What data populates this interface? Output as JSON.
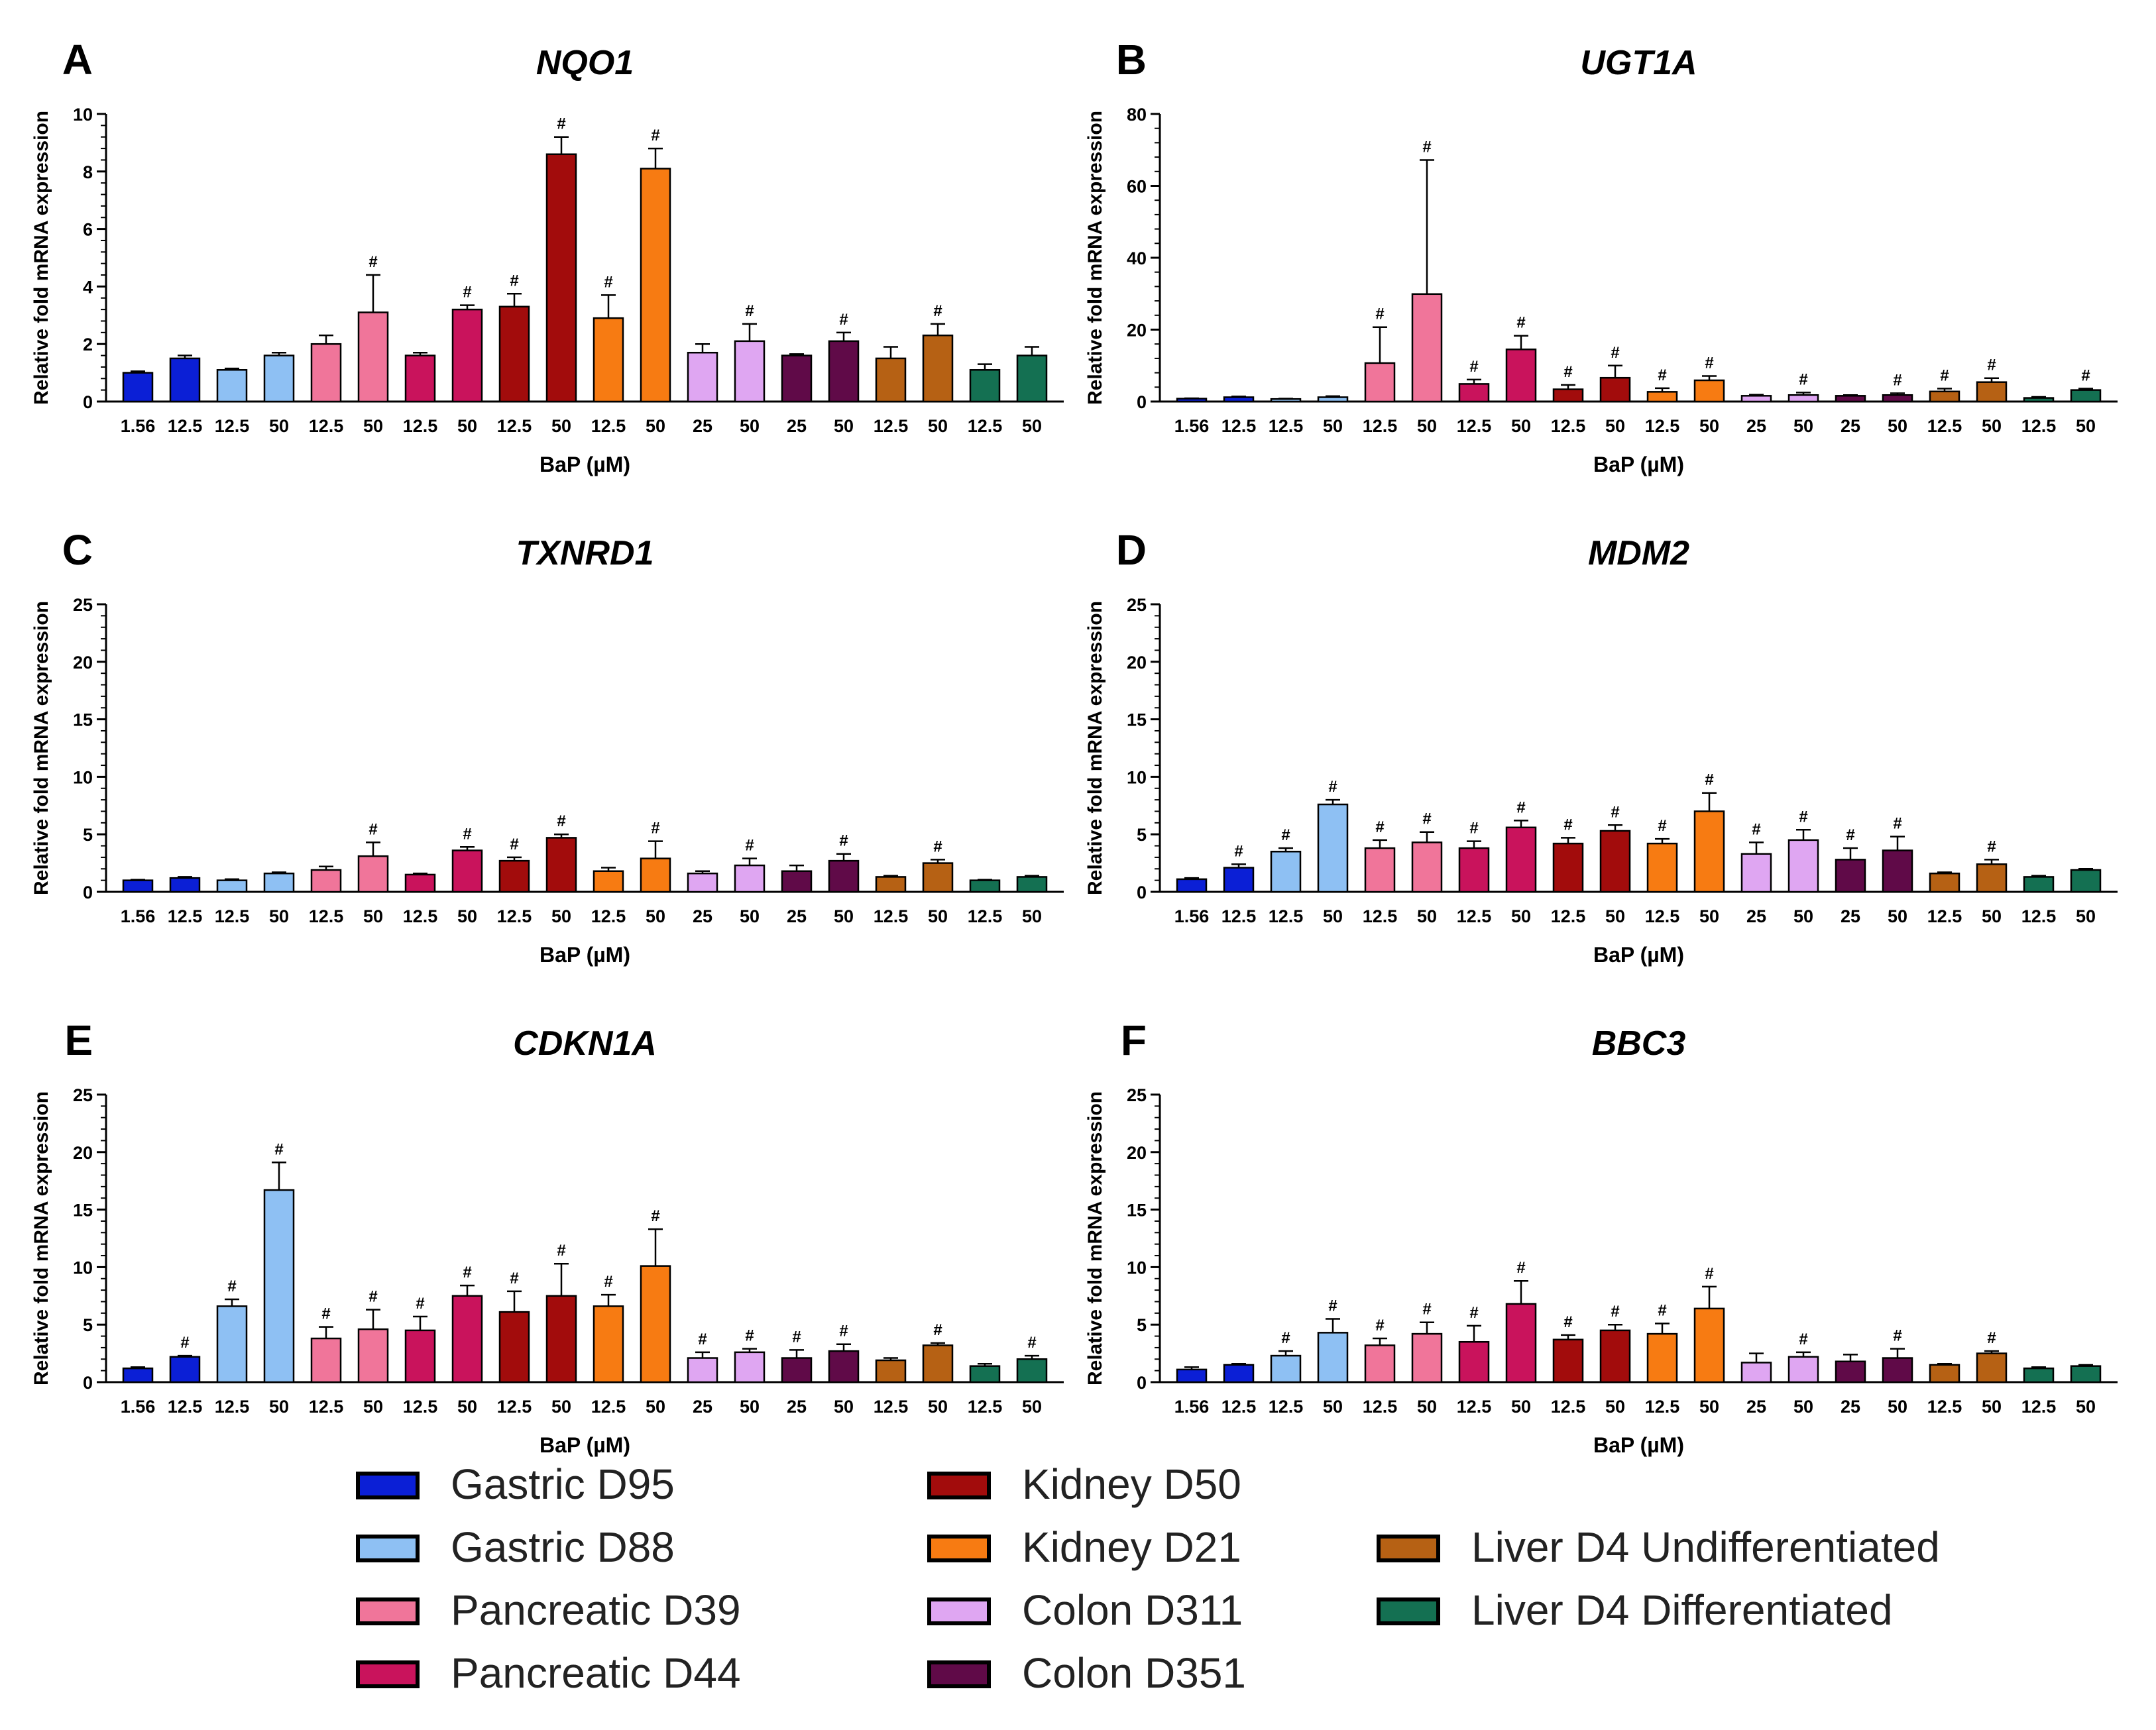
{
  "figure": {
    "legend": [
      {
        "label": "Gastric D95",
        "color": "#0b1fd6"
      },
      {
        "label": "Gastric D88",
        "color": "#8ec0f3"
      },
      {
        "label": "Pancreatic D39",
        "color": "#f0759a"
      },
      {
        "label": "Pancreatic D44",
        "color": "#c9135c"
      },
      {
        "label": "Kidney D50",
        "color": "#a20c0c"
      },
      {
        "label": "Kidney D21",
        "color": "#f77b12"
      },
      {
        "label": "Colon D311",
        "color": "#dfa6f2"
      },
      {
        "label": "Colon D351",
        "color": "#600a48"
      },
      {
        "label": "Liver D4 Undifferentiated",
        "color": "#b66114"
      },
      {
        "label": "Liver D4 Differentiated",
        "color": "#147052"
      }
    ]
  },
  "chart_data": [
    {
      "panel": "A",
      "type": "bar",
      "title": "NQO1",
      "xlabel": "BaP (µM)",
      "ylabel": "Relative fold mRNA expression",
      "ylim": [
        0,
        10
      ],
      "yticks": [
        0,
        2,
        4,
        6,
        8,
        10
      ],
      "categories": [
        "1.56",
        "12.5",
        "12.5",
        "50",
        "12.5",
        "50",
        "12.5",
        "50",
        "12.5",
        "50",
        "12.5",
        "50",
        "25",
        "50",
        "25",
        "50",
        "12.5",
        "50",
        "12.5",
        "50"
      ],
      "values": [
        1.0,
        1.5,
        1.1,
        1.6,
        2.0,
        3.1,
        1.6,
        3.2,
        3.3,
        8.6,
        2.9,
        8.1,
        1.7,
        2.1,
        1.6,
        2.1,
        1.5,
        2.3,
        1.1,
        1.6
      ],
      "errors": [
        0.05,
        0.1,
        0.05,
        0.1,
        0.3,
        1.3,
        0.1,
        0.15,
        0.45,
        0.6,
        0.8,
        0.7,
        0.3,
        0.6,
        0.05,
        0.3,
        0.4,
        0.4,
        0.2,
        0.3
      ],
      "significant": [
        0,
        0,
        0,
        0,
        0,
        1,
        0,
        1,
        1,
        1,
        1,
        1,
        0,
        1,
        0,
        1,
        0,
        1,
        0,
        0
      ]
    },
    {
      "panel": "B",
      "type": "bar",
      "title": "UGT1A",
      "xlabel": "BaP (µM)",
      "ylabel": "Relative fold mRNA expression",
      "ylim": [
        0,
        80
      ],
      "yticks": [
        0,
        20,
        40,
        60,
        80
      ],
      "categories": [
        "1.56",
        "12.5",
        "12.5",
        "50",
        "12.5",
        "50",
        "12.5",
        "50",
        "12.5",
        "50",
        "12.5",
        "50",
        "25",
        "50",
        "25",
        "50",
        "12.5",
        "50",
        "12.5",
        "50"
      ],
      "values": [
        0.8,
        1.2,
        0.7,
        1.2,
        10.7,
        29.9,
        4.9,
        14.5,
        3.4,
        6.6,
        2.7,
        5.9,
        1.6,
        1.8,
        1.6,
        1.8,
        2.8,
        5.4,
        1.0,
        3.2
      ],
      "errors": [
        0.1,
        0.2,
        0.1,
        0.3,
        10.0,
        37.3,
        1.2,
        3.8,
        1.2,
        3.4,
        1.0,
        1.2,
        0.3,
        0.7,
        0.2,
        0.5,
        0.8,
        1.1,
        0.3,
        0.4
      ],
      "significant": [
        0,
        0,
        0,
        0,
        1,
        1,
        1,
        1,
        1,
        1,
        1,
        1,
        0,
        1,
        0,
        1,
        1,
        1,
        0,
        1
      ]
    },
    {
      "panel": "C",
      "type": "bar",
      "title": "TXNRD1",
      "xlabel": "BaP (µM)",
      "ylabel": "Relative fold mRNA expression",
      "ylim": [
        0,
        25
      ],
      "yticks": [
        0,
        5,
        10,
        15,
        20,
        25
      ],
      "categories": [
        "1.56",
        "12.5",
        "12.5",
        "50",
        "12.5",
        "50",
        "12.5",
        "50",
        "12.5",
        "50",
        "12.5",
        "50",
        "25",
        "50",
        "25",
        "50",
        "12.5",
        "50",
        "12.5",
        "50"
      ],
      "values": [
        1.0,
        1.2,
        1.0,
        1.6,
        1.9,
        3.1,
        1.5,
        3.6,
        2.7,
        4.7,
        1.8,
        2.9,
        1.6,
        2.3,
        1.8,
        2.7,
        1.3,
        2.5,
        1.0,
        1.3
      ],
      "errors": [
        0.05,
        0.1,
        0.1,
        0.1,
        0.3,
        1.2,
        0.1,
        0.3,
        0.3,
        0.3,
        0.3,
        1.5,
        0.2,
        0.6,
        0.5,
        0.6,
        0.1,
        0.3,
        0.05,
        0.1
      ],
      "significant": [
        0,
        0,
        0,
        0,
        0,
        1,
        0,
        1,
        1,
        1,
        0,
        1,
        0,
        1,
        0,
        1,
        0,
        1,
        0,
        0
      ]
    },
    {
      "panel": "D",
      "type": "bar",
      "title": "MDM2",
      "xlabel": "BaP (µM)",
      "ylabel": "Relative fold mRNA expression",
      "ylim": [
        0,
        25
      ],
      "yticks": [
        0,
        5,
        10,
        15,
        20,
        25
      ],
      "categories": [
        "1.56",
        "12.5",
        "12.5",
        "50",
        "12.5",
        "50",
        "12.5",
        "50",
        "12.5",
        "50",
        "12.5",
        "50",
        "25",
        "50",
        "25",
        "50",
        "12.5",
        "50",
        "12.5",
        "50"
      ],
      "values": [
        1.1,
        2.1,
        3.5,
        7.6,
        3.8,
        4.3,
        3.8,
        5.6,
        4.2,
        5.3,
        4.2,
        7.0,
        3.3,
        4.5,
        2.8,
        3.6,
        1.6,
        2.4,
        1.3,
        1.9
      ],
      "errors": [
        0.1,
        0.3,
        0.3,
        0.4,
        0.7,
        0.9,
        0.6,
        0.6,
        0.5,
        0.5,
        0.4,
        1.6,
        1.0,
        0.9,
        1.0,
        1.2,
        0.1,
        0.4,
        0.1,
        0.1
      ],
      "significant": [
        0,
        1,
        1,
        1,
        1,
        1,
        1,
        1,
        1,
        1,
        1,
        1,
        1,
        1,
        1,
        1,
        0,
        1,
        0,
        0
      ]
    },
    {
      "panel": "E",
      "type": "bar",
      "title": "CDKN1A",
      "xlabel": "BaP (µM)",
      "ylabel": "Relative fold mRNA expression",
      "ylim": [
        0,
        25
      ],
      "yticks": [
        0,
        5,
        10,
        15,
        20,
        25
      ],
      "categories": [
        "1.56",
        "12.5",
        "12.5",
        "50",
        "12.5",
        "50",
        "12.5",
        "50",
        "12.5",
        "50",
        "12.5",
        "50",
        "25",
        "50",
        "25",
        "50",
        "12.5",
        "50",
        "12.5",
        "50"
      ],
      "values": [
        1.2,
        2.2,
        6.6,
        16.7,
        3.8,
        4.6,
        4.5,
        7.5,
        6.1,
        7.5,
        6.6,
        10.1,
        2.1,
        2.6,
        2.1,
        2.7,
        1.9,
        3.2,
        1.4,
        2.0
      ],
      "errors": [
        0.1,
        0.1,
        0.6,
        2.4,
        1.0,
        1.7,
        1.2,
        0.9,
        1.8,
        2.8,
        1.0,
        3.2,
        0.5,
        0.3,
        0.7,
        0.6,
        0.2,
        0.2,
        0.2,
        0.3
      ],
      "significant": [
        0,
        1,
        1,
        1,
        1,
        1,
        1,
        1,
        1,
        1,
        1,
        1,
        1,
        1,
        1,
        1,
        0,
        1,
        0,
        1
      ]
    },
    {
      "panel": "F",
      "type": "bar",
      "title": "BBC3",
      "xlabel": "BaP (µM)",
      "ylabel": "Relative fold mRNA expression",
      "ylim": [
        0,
        25
      ],
      "yticks": [
        0,
        5,
        10,
        15,
        20,
        25
      ],
      "categories": [
        "1.56",
        "12.5",
        "12.5",
        "50",
        "12.5",
        "50",
        "12.5",
        "50",
        "12.5",
        "50",
        "12.5",
        "50",
        "25",
        "50",
        "25",
        "50",
        "12.5",
        "50",
        "12.5",
        "50"
      ],
      "values": [
        1.1,
        1.5,
        2.3,
        4.3,
        3.2,
        4.2,
        3.5,
        6.8,
        3.7,
        4.5,
        4.2,
        6.4,
        1.7,
        2.2,
        1.8,
        2.1,
        1.5,
        2.5,
        1.2,
        1.4
      ],
      "errors": [
        0.2,
        0.1,
        0.4,
        1.2,
        0.6,
        1.0,
        1.4,
        2.0,
        0.4,
        0.5,
        0.9,
        1.9,
        0.8,
        0.4,
        0.6,
        0.8,
        0.1,
        0.2,
        0.1,
        0.1
      ],
      "significant": [
        0,
        0,
        1,
        1,
        1,
        1,
        1,
        1,
        1,
        1,
        1,
        1,
        0,
        1,
        0,
        1,
        0,
        1,
        0,
        0
      ]
    }
  ]
}
